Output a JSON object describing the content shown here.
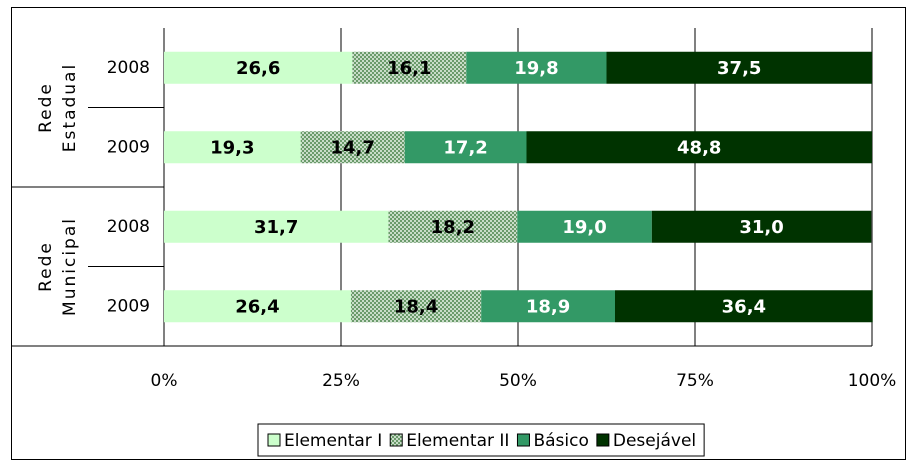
{
  "chart_data": {
    "type": "stacked-bar-horizontal",
    "groups": [
      {
        "name": [
          "Rede",
          "Estadual"
        ],
        "categories": [
          "2008",
          "2009"
        ]
      },
      {
        "name": [
          "Rede",
          "Municipal"
        ],
        "categories": [
          "2008",
          "2009"
        ]
      }
    ],
    "series": [
      {
        "name": "Elementar I",
        "color": "#ccffcc",
        "values": [
          26.6,
          19.3,
          31.7,
          26.4
        ],
        "value_labels": [
          "26,6",
          "19,3",
          "31,7",
          "26,4"
        ]
      },
      {
        "name": "Elementar II",
        "color": "#a8c8a8",
        "pattern": "dots",
        "values": [
          16.1,
          14.7,
          18.2,
          18.4
        ],
        "value_labels": [
          "16,1",
          "14,7",
          "18,2",
          "18,4"
        ]
      },
      {
        "name": "Básico",
        "color": "#339966",
        "values": [
          19.8,
          17.2,
          19.0,
          18.9
        ],
        "value_labels": [
          "19,8",
          "17,2",
          "19,0",
          "18,9"
        ]
      },
      {
        "name": "Desejável",
        "color": "#003300",
        "values": [
          37.5,
          48.8,
          31.0,
          36.4
        ],
        "value_labels": [
          "37,5",
          "48,8",
          "31,0",
          "36,4"
        ]
      }
    ],
    "xlim": [
      0,
      100
    ],
    "xticks": [
      {
        "value": 0,
        "label": "0%"
      },
      {
        "value": 25,
        "label": "25%"
      },
      {
        "value": 50,
        "label": "50%"
      },
      {
        "value": 75,
        "label": "75%"
      },
      {
        "value": 100,
        "label": "100%"
      }
    ],
    "grid": true,
    "legend": "bottom"
  }
}
